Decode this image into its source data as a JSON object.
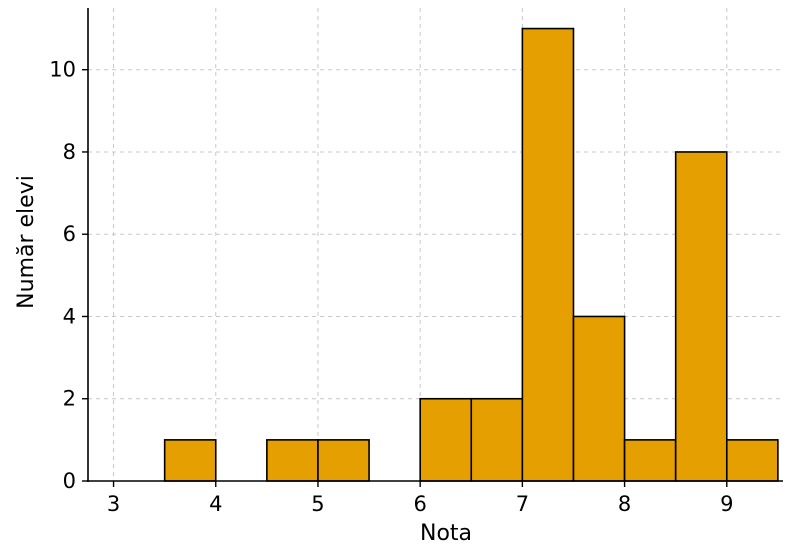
{
  "chart_data": {
    "type": "bar",
    "subtype": "histogram",
    "title": "",
    "xlabel": "Nota",
    "ylabel": "Număr elevi",
    "xlim": [
      2.75,
      9.55
    ],
    "ylim": [
      0,
      11.5
    ],
    "xticks": [
      3,
      4,
      5,
      6,
      7,
      8,
      9
    ],
    "yticks": [
      0,
      2,
      4,
      6,
      8,
      10
    ],
    "grid": true,
    "bar_color": "#E69F00",
    "bar_edge_color": "#000000",
    "bins": [
      {
        "x0": 3.5,
        "x1": 4.0,
        "value": 1
      },
      {
        "x0": 4.5,
        "x1": 5.0,
        "value": 1
      },
      {
        "x0": 5.0,
        "x1": 5.5,
        "value": 1
      },
      {
        "x0": 6.0,
        "x1": 6.5,
        "value": 2
      },
      {
        "x0": 6.5,
        "x1": 7.0,
        "value": 2
      },
      {
        "x0": 7.0,
        "x1": 7.5,
        "value": 11
      },
      {
        "x0": 7.5,
        "x1": 8.0,
        "value": 4
      },
      {
        "x0": 8.0,
        "x1": 8.5,
        "value": 1
      },
      {
        "x0": 8.5,
        "x1": 9.0,
        "value": 8
      },
      {
        "x0": 9.0,
        "x1": 9.5,
        "value": 1
      }
    ]
  }
}
